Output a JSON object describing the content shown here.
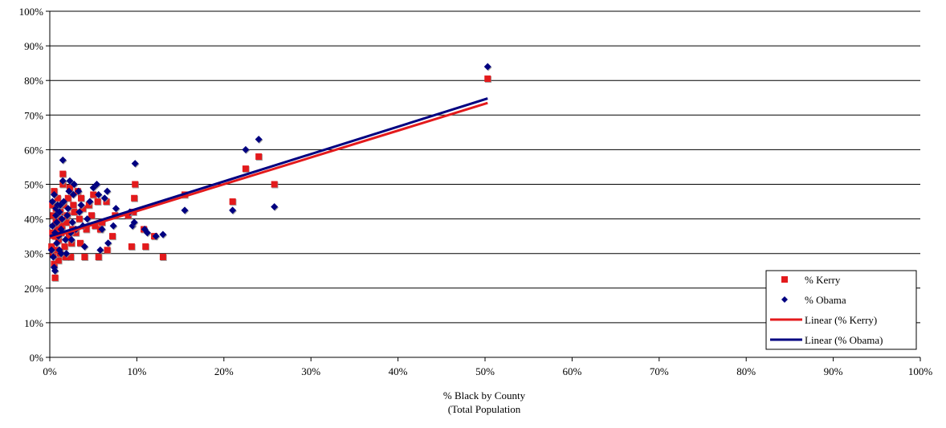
{
  "chart_data": {
    "type": "scatter",
    "title": "",
    "xlabel_line1": "% Black by County",
    "xlabel_line2": "(Total Population",
    "ylabel": "",
    "xlim": [
      0,
      100
    ],
    "ylim": [
      0,
      100
    ],
    "x_ticks": [
      "0%",
      "10%",
      "20%",
      "30%",
      "40%",
      "50%",
      "60%",
      "70%",
      "80%",
      "90%",
      "100%"
    ],
    "y_ticks": [
      "0%",
      "10%",
      "20%",
      "30%",
      "40%",
      "50%",
      "60%",
      "70%",
      "80%",
      "90%",
      "100%"
    ],
    "grid": "horizontal",
    "legend_position": "bottom-right",
    "series": [
      {
        "name": "% Kerry",
        "marker": "square",
        "color": "#e31a1c",
        "points": [
          [
            0.2,
            32
          ],
          [
            0.3,
            44
          ],
          [
            0.3,
            36
          ],
          [
            0.4,
            30
          ],
          [
            0.4,
            41
          ],
          [
            0.5,
            48
          ],
          [
            0.5,
            27
          ],
          [
            0.6,
            23
          ],
          [
            0.6,
            35
          ],
          [
            0.7,
            39
          ],
          [
            0.7,
            43
          ],
          [
            0.8,
            31
          ],
          [
            0.8,
            37
          ],
          [
            0.9,
            46
          ],
          [
            1.0,
            34
          ],
          [
            1.0,
            28
          ],
          [
            1.1,
            40
          ],
          [
            1.2,
            42
          ],
          [
            1.2,
            30
          ],
          [
            1.3,
            36
          ],
          [
            1.4,
            38
          ],
          [
            1.5,
            53
          ],
          [
            1.5,
            50
          ],
          [
            1.6,
            44
          ],
          [
            1.7,
            32
          ],
          [
            1.8,
            29
          ],
          [
            1.9,
            39
          ],
          [
            2.0,
            41
          ],
          [
            2.1,
            46
          ],
          [
            2.2,
            35
          ],
          [
            2.3,
            49
          ],
          [
            2.4,
            29
          ],
          [
            2.5,
            33
          ],
          [
            2.6,
            37
          ],
          [
            2.7,
            44
          ],
          [
            2.8,
            42
          ],
          [
            3.0,
            36
          ],
          [
            3.2,
            48
          ],
          [
            3.4,
            40
          ],
          [
            3.5,
            33
          ],
          [
            3.6,
            46
          ],
          [
            3.8,
            43
          ],
          [
            4.0,
            29
          ],
          [
            4.2,
            37
          ],
          [
            4.5,
            44
          ],
          [
            4.8,
            41
          ],
          [
            5.0,
            47
          ],
          [
            5.2,
            38
          ],
          [
            5.5,
            45
          ],
          [
            5.6,
            29
          ],
          [
            5.8,
            37
          ],
          [
            6.0,
            39
          ],
          [
            6.5,
            45
          ],
          [
            6.6,
            31
          ],
          [
            7.2,
            35
          ],
          [
            7.5,
            41
          ],
          [
            9.0,
            41
          ],
          [
            9.4,
            32
          ],
          [
            9.6,
            42
          ],
          [
            9.7,
            46
          ],
          [
            9.8,
            50
          ],
          [
            10.8,
            37
          ],
          [
            11.0,
            32
          ],
          [
            12.0,
            35
          ],
          [
            13.0,
            29
          ],
          [
            15.5,
            47
          ],
          [
            21.0,
            45
          ],
          [
            22.5,
            54.5
          ],
          [
            24.0,
            58
          ],
          [
            25.8,
            50
          ],
          [
            50.3,
            80.5
          ]
        ]
      },
      {
        "name": "% Obama",
        "marker": "diamond",
        "color": "#000080",
        "points": [
          [
            0.2,
            31
          ],
          [
            0.3,
            45
          ],
          [
            0.3,
            38
          ],
          [
            0.4,
            29
          ],
          [
            0.5,
            47
          ],
          [
            0.5,
            26
          ],
          [
            0.6,
            25
          ],
          [
            0.6,
            36
          ],
          [
            0.7,
            41
          ],
          [
            0.7,
            43
          ],
          [
            0.8,
            33
          ],
          [
            0.8,
            39
          ],
          [
            0.9,
            44
          ],
          [
            1.0,
            35
          ],
          [
            1.1,
            31
          ],
          [
            1.1,
            42
          ],
          [
            1.2,
            44
          ],
          [
            1.3,
            37
          ],
          [
            1.3,
            30
          ],
          [
            1.4,
            40
          ],
          [
            1.5,
            57
          ],
          [
            1.5,
            51
          ],
          [
            1.6,
            45
          ],
          [
            1.8,
            34
          ],
          [
            1.9,
            30
          ],
          [
            2.0,
            41
          ],
          [
            2.1,
            43
          ],
          [
            2.2,
            48
          ],
          [
            2.3,
            51
          ],
          [
            2.4,
            36
          ],
          [
            2.5,
            34
          ],
          [
            2.6,
            39
          ],
          [
            2.7,
            47
          ],
          [
            2.8,
            50
          ],
          [
            3.0,
            37
          ],
          [
            3.3,
            48
          ],
          [
            3.4,
            42
          ],
          [
            3.6,
            44
          ],
          [
            3.8,
            38
          ],
          [
            4.0,
            32
          ],
          [
            4.3,
            40
          ],
          [
            4.6,
            45
          ],
          [
            5.0,
            49
          ],
          [
            5.4,
            50
          ],
          [
            5.6,
            47
          ],
          [
            5.8,
            31
          ],
          [
            6.0,
            37
          ],
          [
            6.3,
            46
          ],
          [
            6.6,
            48
          ],
          [
            6.7,
            33
          ],
          [
            7.3,
            38
          ],
          [
            7.6,
            43
          ],
          [
            9.2,
            42
          ],
          [
            9.5,
            38
          ],
          [
            9.7,
            39
          ],
          [
            9.8,
            56
          ],
          [
            10.9,
            37
          ],
          [
            11.2,
            36
          ],
          [
            12.2,
            35
          ],
          [
            13.0,
            35.5
          ],
          [
            15.5,
            42.5
          ],
          [
            21.0,
            42.5
          ],
          [
            22.5,
            60
          ],
          [
            24.0,
            63
          ],
          [
            25.8,
            43.5
          ],
          [
            50.3,
            84
          ]
        ]
      }
    ],
    "trendlines": [
      {
        "name": "Linear (% Kerry)",
        "color": "#e31a1c",
        "x": [
          0,
          50.3
        ],
        "y": [
          34.5,
          73.5
        ]
      },
      {
        "name": "Linear (% Obama)",
        "color": "#000080",
        "x": [
          0,
          50.3
        ],
        "y": [
          35,
          74.8
        ]
      }
    ]
  }
}
